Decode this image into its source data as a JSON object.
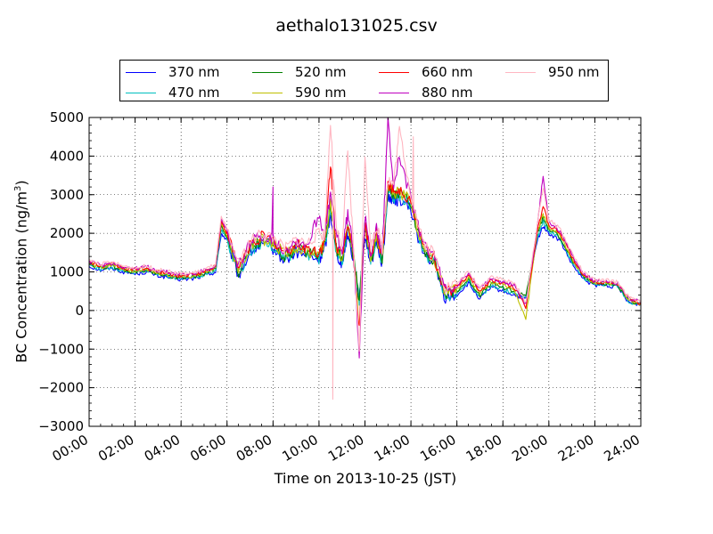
{
  "chart_data": {
    "type": "line",
    "title": "aethalo131025.csv",
    "xlabel": "Time on 2013-10-25 (JST)",
    "ylabel": "BC Concentration (ng/m",
    "ylabel_sup": "3",
    "ylabel_close": ")",
    "ylim": [
      -3000,
      5000
    ],
    "xlim_hours": [
      0,
      24
    ],
    "yticks": [
      "−3000",
      "−2000",
      "−1000",
      "0",
      "1000",
      "2000",
      "3000",
      "4000",
      "5000"
    ],
    "ytick_values": [
      -3000,
      -2000,
      -1000,
      0,
      1000,
      2000,
      3000,
      4000,
      5000
    ],
    "xticks": [
      "00:00",
      "02:00",
      "04:00",
      "06:00",
      "08:00",
      "10:00",
      "12:00",
      "14:00",
      "16:00",
      "18:00",
      "20:00",
      "22:00",
      "24:00"
    ],
    "grid": true,
    "legend_placement": "top",
    "x_hours": [
      0,
      0.5,
      1,
      1.5,
      2,
      2.5,
      3,
      3.5,
      4,
      4.5,
      5,
      5.5,
      5.75,
      6,
      6.5,
      7,
      7.5,
      8,
      8.5,
      9,
      9.5,
      10,
      10.25,
      10.5,
      10.75,
      11,
      11.25,
      11.5,
      11.75,
      12,
      12.25,
      12.5,
      12.75,
      13,
      13.25,
      13.5,
      14,
      14.5,
      15,
      15.5,
      16,
      16.5,
      17,
      17.5,
      18,
      18.5,
      19,
      19.5,
      19.75,
      20,
      20.5,
      21,
      21.5,
      22,
      22.5,
      23,
      23.5,
      24
    ],
    "series": [
      {
        "name": "370 nm",
        "color": "#0000ff",
        "values": [
          1150,
          1050,
          1100,
          1000,
          950,
          1000,
          900,
          850,
          800,
          820,
          900,
          1000,
          2000,
          1800,
          900,
          1500,
          1700,
          1600,
          1300,
          1500,
          1400,
          1300,
          1600,
          2500,
          1500,
          1200,
          2000,
          1300,
          200,
          2000,
          1200,
          1800,
          1200,
          3000,
          2800,
          2900,
          2600,
          1500,
          1200,
          300,
          400,
          700,
          300,
          600,
          500,
          400,
          300,
          1800,
          2200,
          2000,
          1800,
          1200,
          800,
          650,
          650,
          600,
          200,
          150
        ]
      },
      {
        "name": "470 nm",
        "color": "#00bfbf",
        "values": [
          1180,
          1080,
          1120,
          1020,
          980,
          1030,
          930,
          880,
          830,
          850,
          930,
          1050,
          2100,
          1850,
          950,
          1550,
          1750,
          1650,
          1350,
          1550,
          1450,
          1350,
          1650,
          2600,
          1550,
          1250,
          2100,
          1350,
          250,
          2100,
          1250,
          1850,
          1250,
          3100,
          2900,
          3000,
          2700,
          1550,
          1250,
          350,
          450,
          750,
          350,
          650,
          550,
          450,
          350,
          1900,
          2300,
          2050,
          1850,
          1250,
          850,
          680,
          680,
          620,
          220,
          160
        ]
      },
      {
        "name": "520 nm",
        "color": "#008000",
        "values": [
          1200,
          1100,
          1150,
          1050,
          1000,
          1050,
          950,
          900,
          850,
          870,
          950,
          1100,
          2200,
          1900,
          1000,
          1600,
          1800,
          1700,
          1400,
          1600,
          1500,
          1400,
          1700,
          2700,
          1600,
          1300,
          2200,
          1400,
          300,
          2200,
          1300,
          1900,
          1300,
          3200,
          3000,
          3050,
          2750,
          1600,
          1300,
          400,
          500,
          800,
          400,
          700,
          600,
          500,
          400,
          2000,
          2400,
          2100,
          1900,
          1300,
          880,
          700,
          700,
          650,
          250,
          170
        ]
      },
      {
        "name": "590 nm",
        "color": "#bfbf00",
        "values": [
          1220,
          1120,
          1170,
          1070,
          1020,
          1070,
          970,
          920,
          870,
          890,
          970,
          1120,
          2250,
          1950,
          1050,
          1650,
          1850,
          1750,
          1450,
          1650,
          1550,
          1450,
          1750,
          2800,
          1650,
          1350,
          2250,
          1450,
          -400,
          2250,
          1350,
          1950,
          1350,
          3250,
          3050,
          3100,
          2800,
          1650,
          1350,
          450,
          550,
          850,
          450,
          750,
          650,
          550,
          -200,
          2050,
          2500,
          2150,
          1950,
          1350,
          900,
          720,
          720,
          670,
          270,
          180
        ]
      },
      {
        "name": "660 nm",
        "color": "#ff0000",
        "values": [
          1250,
          1150,
          1200,
          1100,
          1050,
          1100,
          1000,
          950,
          900,
          920,
          1000,
          1150,
          2300,
          2000,
          1100,
          1700,
          1900,
          1800,
          1500,
          1700,
          1600,
          1500,
          1800,
          3800,
          1700,
          1400,
          2300,
          1500,
          -500,
          2300,
          1400,
          2000,
          1400,
          3300,
          3100,
          3150,
          2850,
          1700,
          1400,
          500,
          600,
          900,
          500,
          800,
          700,
          600,
          100,
          2100,
          2700,
          2200,
          2000,
          1400,
          920,
          740,
          740,
          690,
          290,
          190
        ]
      },
      {
        "name": "880 nm",
        "color": "#bf00bf",
        "values": [
          1280,
          1180,
          1230,
          1130,
          1080,
          1130,
          1030,
          980,
          930,
          950,
          1030,
          1180,
          2350,
          2050,
          1150,
          1750,
          1950,
          1850,
          1550,
          1800,
          1700,
          2500,
          1900,
          3000,
          2000,
          1500,
          2500,
          1600,
          -1100,
          2400,
          1500,
          2100,
          1500,
          4900,
          3200,
          4000,
          2900,
          1750,
          1450,
          550,
          650,
          950,
          550,
          850,
          750,
          650,
          150,
          2200,
          3500,
          2300,
          2050,
          1450,
          950,
          760,
          760,
          710,
          310,
          200
        ]
      },
      {
        "name": "950 nm",
        "color": "#ffb6c1",
        "values": [
          1300,
          1200,
          1250,
          1150,
          1100,
          1150,
          1050,
          1000,
          950,
          970,
          1050,
          1200,
          2400,
          2100,
          1200,
          1800,
          2000,
          1900,
          1600,
          1850,
          1750,
          2000,
          1950,
          4900,
          2100,
          1600,
          4100,
          1700,
          -1000,
          4100,
          1600,
          2200,
          1600,
          3400,
          3300,
          4700,
          3000,
          1800,
          1500,
          600,
          700,
          1000,
          600,
          900,
          800,
          700,
          200,
          2250,
          3200,
          2350,
          2100,
          1500,
          980,
          780,
          780,
          730,
          330,
          210
        ]
      }
    ],
    "extra_spikes": [
      {
        "x": 10.6,
        "series": "950 nm",
        "y": -2300
      },
      {
        "x": 8.0,
        "series": "880 nm",
        "y": 3200
      },
      {
        "x": 14.1,
        "series": "950 nm",
        "y": 4500
      }
    ]
  }
}
